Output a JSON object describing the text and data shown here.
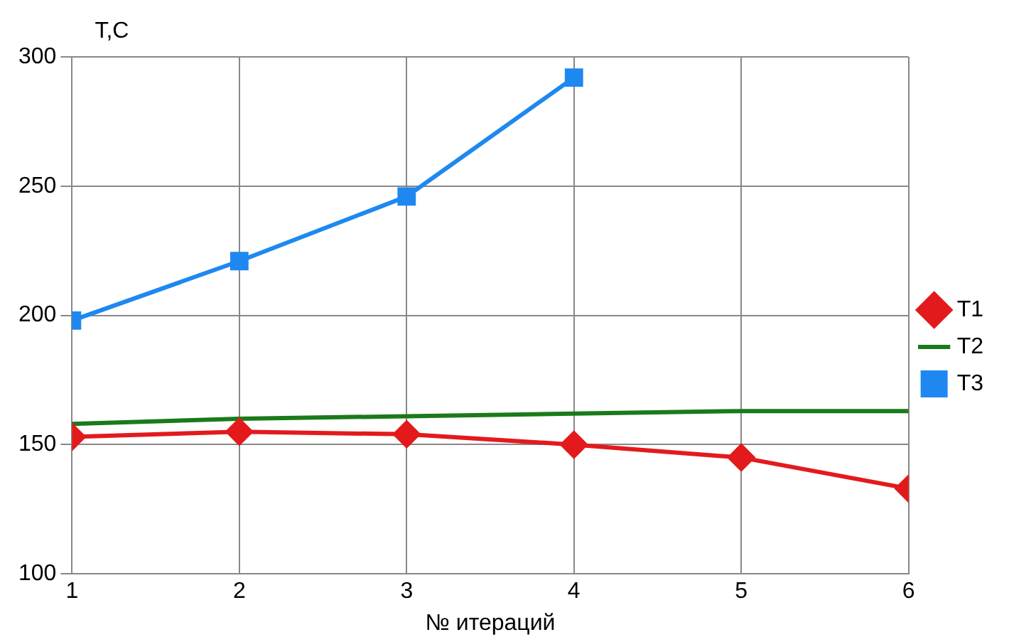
{
  "chart_data": {
    "type": "line",
    "xlabel": "№ итераций",
    "ylabel": "T,C",
    "x": [
      1,
      2,
      3,
      4,
      5,
      6
    ],
    "xlim": [
      1,
      6
    ],
    "xticks": [
      1,
      2,
      3,
      4,
      5,
      6
    ],
    "ylim": [
      100,
      300
    ],
    "yticks": [
      100,
      150,
      200,
      250,
      300
    ],
    "grid": true,
    "legend": "right",
    "series": [
      {
        "name": "T1",
        "color": "#e31a1c",
        "marker": "diamond",
        "values": [
          153,
          155,
          154,
          150,
          145,
          133
        ]
      },
      {
        "name": "T2",
        "color": "#1a7a1a",
        "marker": "none",
        "values": [
          158,
          160,
          161,
          162,
          163,
          163
        ]
      },
      {
        "name": "T3",
        "color": "#1e88f0",
        "marker": "square",
        "values": [
          198,
          221,
          246,
          292,
          null,
          null
        ]
      }
    ]
  }
}
